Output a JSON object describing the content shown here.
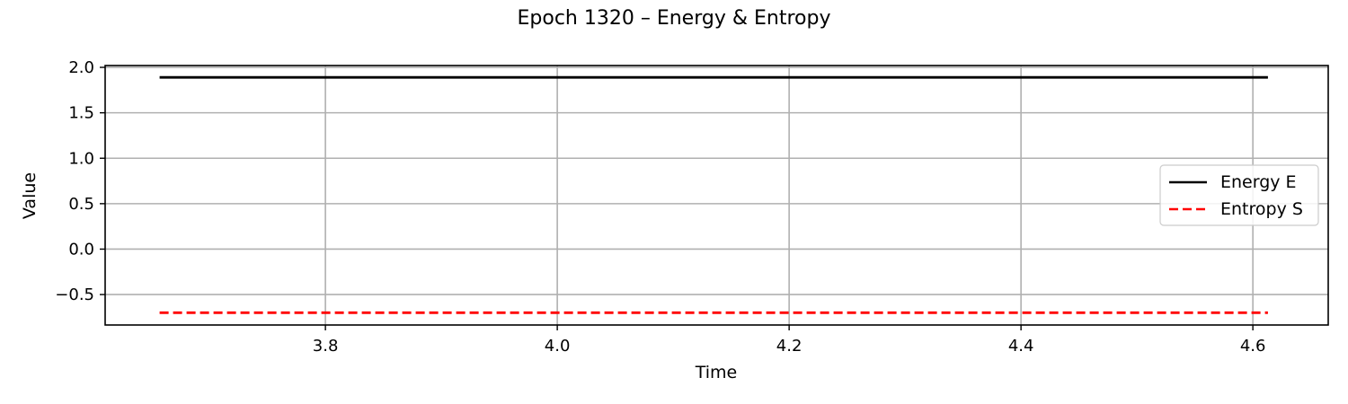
{
  "chart_data": {
    "type": "line",
    "title": "Epoch 1320 – Energy & Entropy",
    "xlabel": "Time",
    "ylabel": "Value",
    "xlim": [
      3.61,
      4.665
    ],
    "ylim": [
      -0.835,
      2.02
    ],
    "x_ticks": [
      3.8,
      4.0,
      4.2,
      4.4,
      4.6
    ],
    "x_tick_labels": [
      "3.8",
      "4.0",
      "4.2",
      "4.4",
      "4.6"
    ],
    "y_ticks": [
      2.0,
      1.5,
      1.0,
      0.5,
      0.0,
      -0.5
    ],
    "y_tick_labels": [
      "2.0",
      "1.5",
      "1.0",
      "0.5",
      "0.0",
      "−0.5"
    ],
    "grid": true,
    "legend_position": "center-right",
    "series": [
      {
        "name": "Energy E",
        "color": "#000000",
        "dash": "solid",
        "x": [
          3.657,
          4.613
        ],
        "y": [
          1.89,
          1.89
        ]
      },
      {
        "name": "Entropy S",
        "color": "#ff0000",
        "dash": "dashed",
        "x": [
          3.657,
          4.613
        ],
        "y": [
          -0.7,
          -0.7
        ]
      }
    ]
  }
}
